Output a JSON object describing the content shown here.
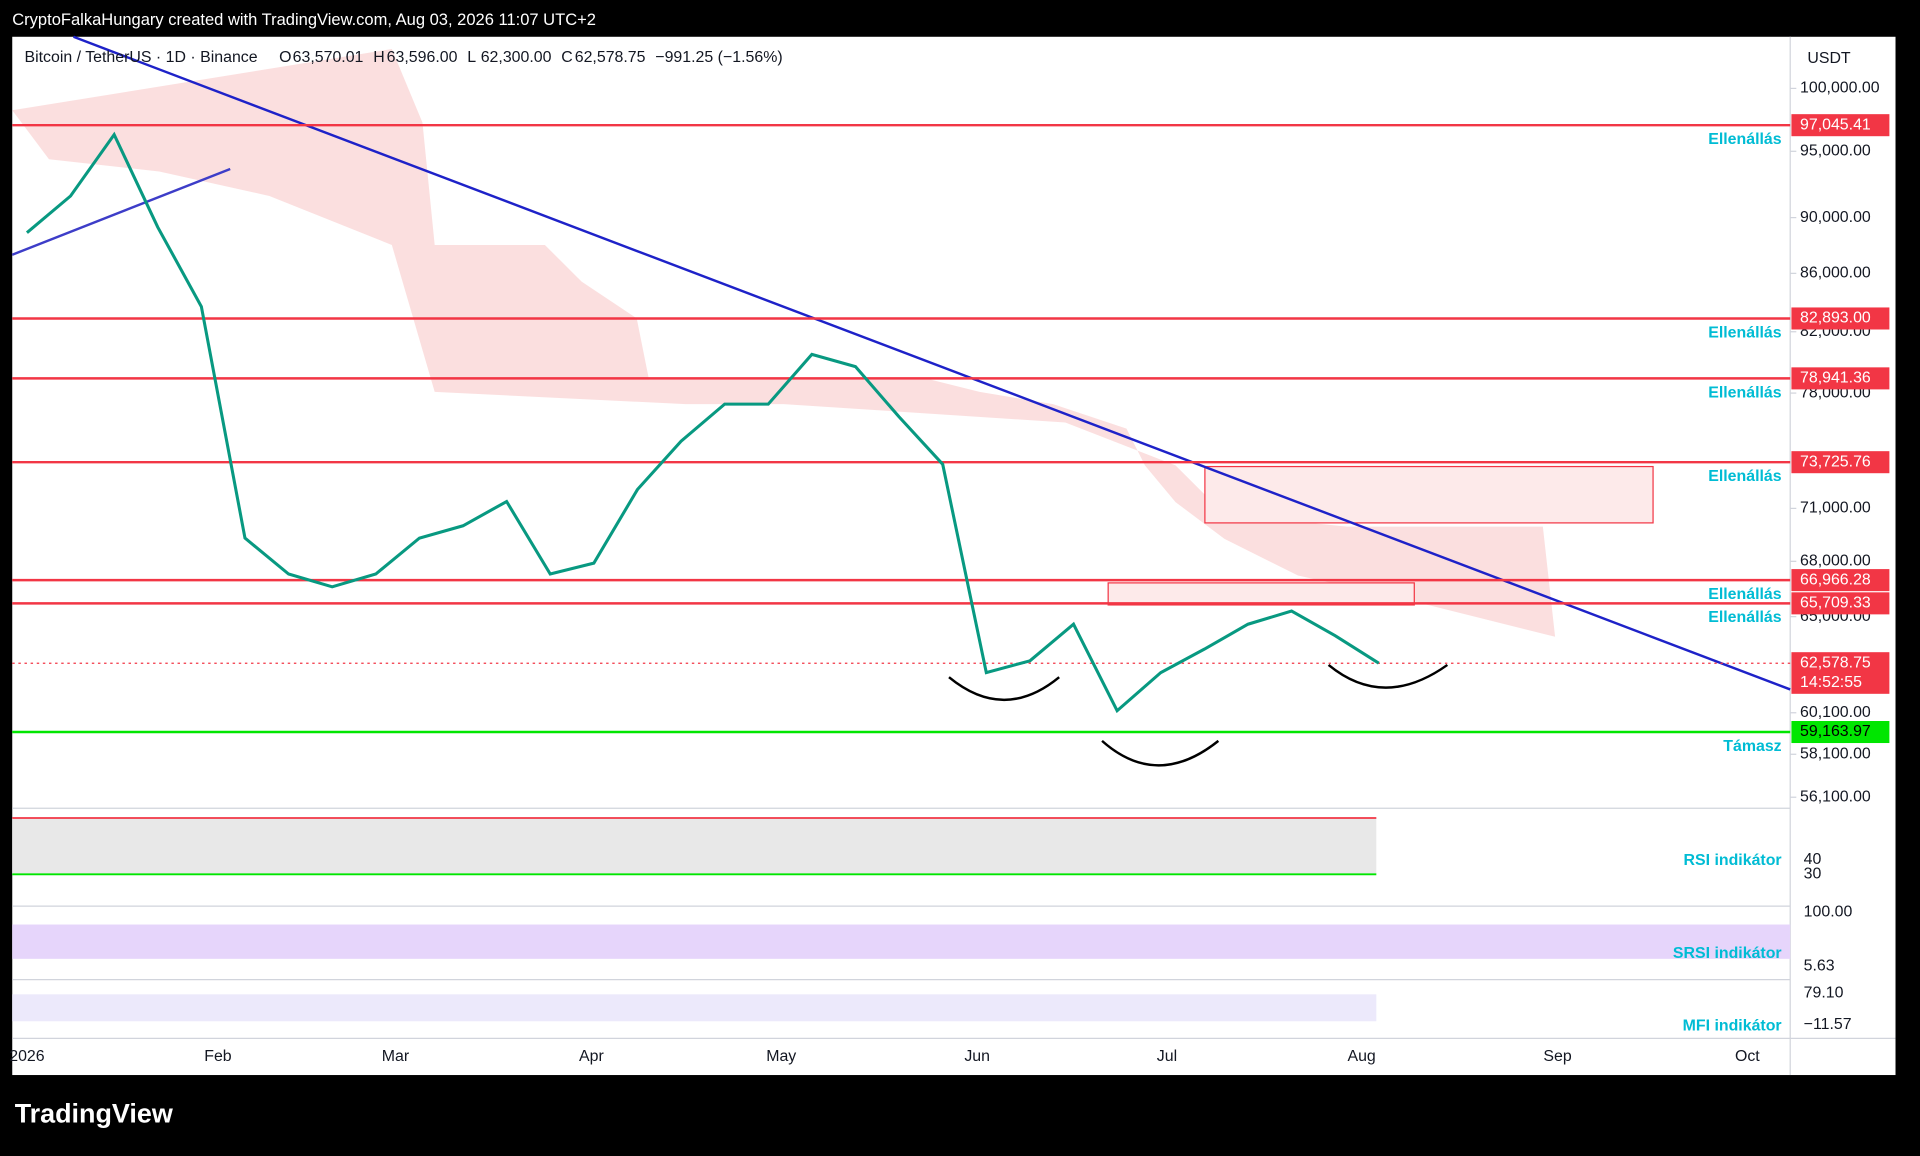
{
  "header": {
    "text": "CryptoFalkaHungary created with TradingView.com, Aug 03, 2026 11:07 UTC+2"
  },
  "chart_data": {
    "type": "line",
    "legend": {
      "symbol": "Bitcoin / TetherUS · 1D · Binance",
      "items": [
        {
          "label": "O",
          "value": "63,570.01"
        },
        {
          "label": "H",
          "value": "63,596.00"
        },
        {
          "label": "L",
          "value": "62,300.00"
        },
        {
          "label": "C",
          "value": "62,578.75"
        }
      ],
      "change": "−991.25 (−1.56%)"
    },
    "currency": "USDT",
    "log_scale": true,
    "ylim": [
      55600,
      104300
    ],
    "yticks": [
      {
        "value": 100000,
        "label": "100,000.00"
      },
      {
        "value": 95000,
        "label": "95,000.00"
      },
      {
        "value": 90000,
        "label": "90,000.00"
      },
      {
        "value": 86000,
        "label": "86,000.00"
      },
      {
        "value": 82000,
        "label": "82,000.00"
      },
      {
        "value": 78000,
        "label": "78,000.00"
      },
      {
        "value": 71000,
        "label": "71,000.00"
      },
      {
        "value": 68000,
        "label": "68,000.00"
      },
      {
        "value": 65000,
        "label": "65,000.00"
      },
      {
        "value": 60100,
        "label": "60,100.00"
      },
      {
        "value": 58100,
        "label": "58,100.00"
      },
      {
        "value": 56100,
        "label": "56,100.00"
      }
    ],
    "x_labels": [
      "2026",
      "Feb",
      "Mar",
      "Apr",
      "May",
      "Jun",
      "Jul",
      "Aug",
      "Sep",
      "Oct"
    ],
    "series": [
      {
        "name": "Bitcoin / TetherUS · 1D · Binance",
        "color": "#089981",
        "values": [
          88900,
          91600,
          96300,
          89300,
          83700,
          69300,
          67300,
          66600,
          67300,
          69300,
          70000,
          71400,
          67300,
          67900,
          72100,
          75000,
          77300,
          77300,
          80500,
          79700,
          76500,
          73600,
          62100,
          62700,
          64600,
          60200,
          62100,
          63300,
          64600,
          65300,
          64000,
          62578.75
        ]
      }
    ],
    "levels": [
      {
        "value": 97045.41,
        "label": "97,045.41",
        "name": "Ellenállás",
        "color": "#f23645"
      },
      {
        "value": 82893.0,
        "label": "82,893.00",
        "name": "Ellenállás",
        "color": "#f23645"
      },
      {
        "value": 78941.36,
        "label": "78,941.36",
        "name": "Ellenállás",
        "color": "#f23645"
      },
      {
        "value": 73725.76,
        "label": "73,725.76",
        "name": "Ellenállás",
        "color": "#f23645"
      },
      {
        "value": 66966.28,
        "label": "66,966.28",
        "name": "Ellenállás",
        "color": "#f23645"
      },
      {
        "value": 65709.33,
        "label": "65,709.33",
        "name": "Ellenállás",
        "color": "#f23645"
      },
      {
        "value": 59163.97,
        "label": "59,163.97",
        "name": "Támasz",
        "color": "#00e600"
      }
    ],
    "current_price": {
      "value": 62578.75,
      "label": "62,578.75",
      "countdown": "14:52:55",
      "color": "#f23645"
    },
    "indicators": [
      {
        "name": "RSI indikátor",
        "labels": [
          "40",
          "30"
        ]
      },
      {
        "name": "SRSI indikátor",
        "labels": [
          "100.00",
          "5.63"
        ]
      },
      {
        "name": "MFI indikátor",
        "labels": [
          "79.10",
          "−11.57"
        ]
      }
    ]
  },
  "footer": {
    "logo": "TradingView"
  }
}
